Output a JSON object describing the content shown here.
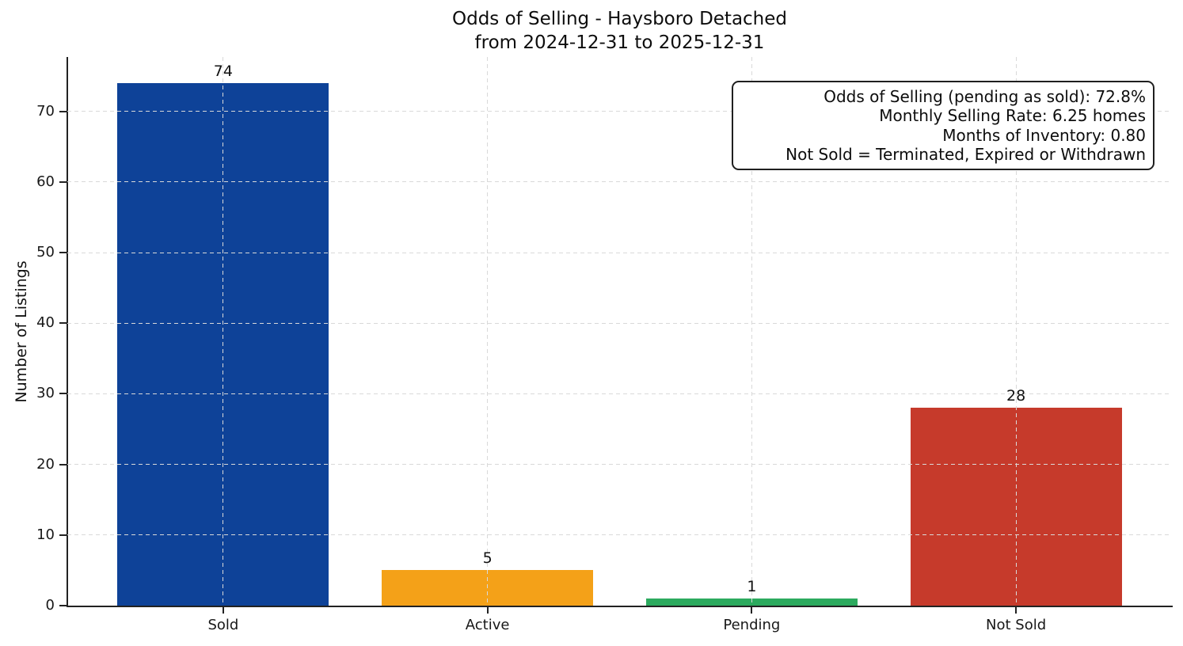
{
  "figure": {
    "title": "Odds of Selling - Haysboro Detached",
    "subtitle": "from 2024-12-31 to 2025-12-31"
  },
  "chart_data": {
    "type": "bar",
    "title": "Odds of Selling - Haysboro Detached",
    "subtitle": "from 2024-12-31 to 2025-12-31",
    "categories": [
      "Sold",
      "Active",
      "Pending",
      "Not Sold"
    ],
    "values": [
      74,
      5,
      1,
      28
    ],
    "bar_colors": [
      "#0e4298",
      "#f4a118",
      "#2caa5e",
      "#c63a2b"
    ],
    "xlabel": "",
    "ylabel": "Number of Listings",
    "ylim": [
      0,
      77.7
    ],
    "yticks": [
      0,
      10,
      20,
      30,
      40,
      50,
      60,
      70
    ],
    "grid": "dashed light-gray gridlines on both axes, drawn above bars",
    "legend": "none",
    "annotation_box": {
      "position": "top-right",
      "lines": [
        "Odds of Selling (pending as sold): 72.8%",
        "Monthly Selling Rate: 6.25 homes",
        "Months of Inventory: 0.80",
        "Not Sold = Terminated, Expired or Withdrawn"
      ]
    }
  }
}
